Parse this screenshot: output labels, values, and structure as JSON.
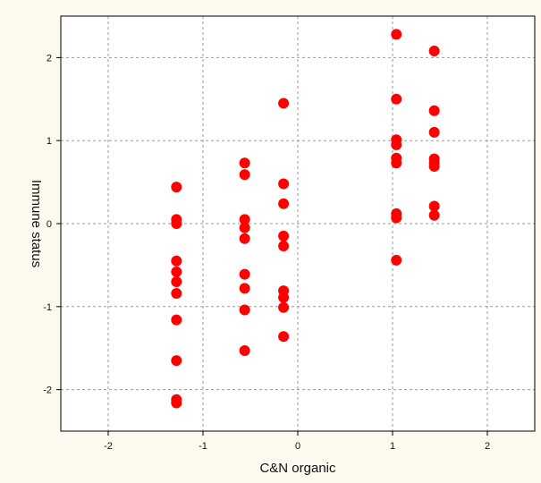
{
  "chart_data": {
    "type": "scatter",
    "title": "",
    "xlabel": "C&N organic",
    "ylabel": "Immune status",
    "xlim": [
      -2.5,
      2.5
    ],
    "ylim": [
      -2.5,
      2.5
    ],
    "xticks": [
      -2,
      -1,
      0,
      1,
      2
    ],
    "yticks": [
      -2,
      -1,
      0,
      1,
      2
    ],
    "grid": true,
    "marker_color": "#ff0000",
    "background_color": "#fdf9ee",
    "plot_background_color": "#ffffff",
    "series": [
      {
        "points": [
          [
            -1.28,
            0.44
          ],
          [
            -1.28,
            0.05
          ],
          [
            -1.28,
            0.0
          ],
          [
            -1.28,
            -0.45
          ],
          [
            -1.28,
            -0.58
          ],
          [
            -1.28,
            -0.7
          ],
          [
            -1.28,
            -0.84
          ],
          [
            -1.28,
            -1.16
          ],
          [
            -1.28,
            -1.65
          ],
          [
            -1.28,
            -2.12
          ],
          [
            -1.28,
            -2.16
          ],
          [
            -0.56,
            0.73
          ],
          [
            -0.56,
            0.59
          ],
          [
            -0.56,
            0.05
          ],
          [
            -0.56,
            -0.05
          ],
          [
            -0.56,
            -0.18
          ],
          [
            -0.56,
            -0.61
          ],
          [
            -0.56,
            -0.78
          ],
          [
            -0.56,
            -1.04
          ],
          [
            -0.56,
            -1.53
          ],
          [
            -0.15,
            1.45
          ],
          [
            -0.15,
            0.48
          ],
          [
            -0.15,
            0.24
          ],
          [
            -0.15,
            -0.15
          ],
          [
            -0.15,
            -0.27
          ],
          [
            -0.15,
            -0.81
          ],
          [
            -0.15,
            -0.89
          ],
          [
            -0.15,
            -1.01
          ],
          [
            -0.15,
            -1.36
          ],
          [
            1.04,
            2.28
          ],
          [
            1.04,
            1.5
          ],
          [
            1.04,
            1.01
          ],
          [
            1.04,
            0.95
          ],
          [
            1.04,
            0.79
          ],
          [
            1.04,
            0.73
          ],
          [
            1.04,
            0.12
          ],
          [
            1.04,
            0.07
          ],
          [
            1.04,
            -0.44
          ],
          [
            1.44,
            2.08
          ],
          [
            1.44,
            1.36
          ],
          [
            1.44,
            1.1
          ],
          [
            1.44,
            0.78
          ],
          [
            1.44,
            0.73
          ],
          [
            1.44,
            0.69
          ],
          [
            1.44,
            0.21
          ],
          [
            1.44,
            0.1
          ]
        ]
      }
    ]
  }
}
